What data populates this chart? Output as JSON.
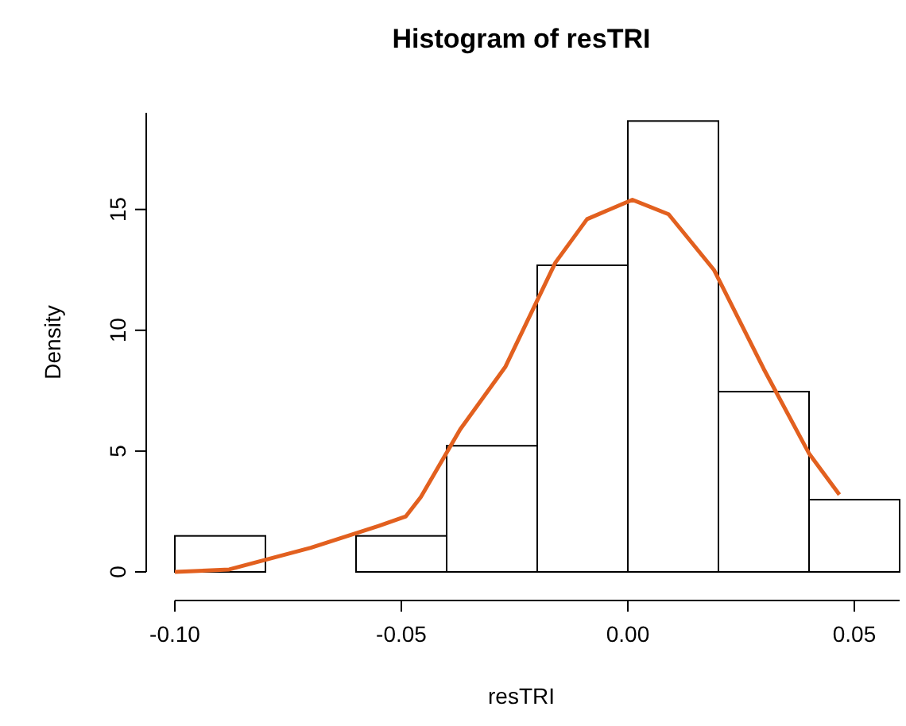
{
  "chart_data": {
    "type": "histogram",
    "title": "Histogram of resTRI",
    "xlabel": "resTRI",
    "ylabel": "Density",
    "bins": [
      -0.1,
      -0.08,
      -0.06,
      -0.04,
      -0.02,
      0,
      0.02,
      0.04,
      0.06
    ],
    "values": [
      1.49,
      0,
      1.49,
      5.22,
      12.69,
      18.66,
      7.46,
      2.99
    ],
    "color": "#ffffff",
    "series": [
      {
        "type": "line",
        "color": "#e2601f",
        "x": [
          -0.1,
          -0.088,
          -0.07,
          -0.055,
          -0.049,
          -0.0457,
          -0.037,
          -0.027,
          -0.016,
          -0.009,
          0.001,
          0.009,
          0.019,
          0.03,
          0.04,
          0.0467
        ],
        "values": [
          0,
          0.1,
          1.0,
          1.9,
          2.3,
          3.1,
          5.9,
          8.5,
          12.8,
          14.6,
          15.4,
          14.8,
          12.5,
          8.4,
          4.9,
          3.2
        ]
      }
    ],
    "xlim": [
      -0.1,
      0.06
    ],
    "ylim": [
      0,
      19
    ],
    "xticks": [
      {
        "value": -0.1,
        "label": "-0.10"
      },
      -0.05,
      {
        "value": 0,
        "label": "0.00"
      },
      0.05
    ],
    "yticks": [
      0,
      5,
      10,
      15
    ],
    "grid": false
  }
}
